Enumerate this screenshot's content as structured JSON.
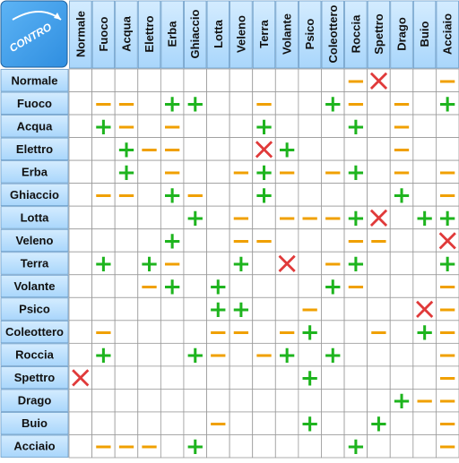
{
  "corner": "CONTRO",
  "symbol_colors": {
    "+": "#1eb41e",
    "−": "#f0a000",
    "×": "#e03a3a"
  },
  "columns": [
    "Normale",
    "Fuoco",
    "Acqua",
    "Elettro",
    "Erba",
    "Ghiaccio",
    "Lotta",
    "Veleno",
    "Terra",
    "Volante",
    "Psico",
    "Coleottero",
    "Roccia",
    "Spettro",
    "Drago",
    "Buio",
    "Acciaio"
  ],
  "rows": [
    {
      "label": "Normale",
      "cells": [
        null,
        null,
        null,
        null,
        null,
        null,
        null,
        null,
        null,
        null,
        null,
        null,
        "−",
        "×",
        null,
        null,
        "−"
      ]
    },
    {
      "label": "Fuoco",
      "cells": [
        null,
        "−",
        "−",
        null,
        "+",
        "+",
        null,
        null,
        "−",
        null,
        null,
        "+",
        "−",
        null,
        "−",
        null,
        "+"
      ]
    },
    {
      "label": "Acqua",
      "cells": [
        null,
        "+",
        "−",
        null,
        "−",
        null,
        null,
        null,
        "+",
        null,
        null,
        null,
        "+",
        null,
        "−",
        null,
        null
      ]
    },
    {
      "label": "Elettro",
      "cells": [
        null,
        null,
        "+",
        "−",
        "−",
        null,
        null,
        null,
        "×",
        "+",
        null,
        null,
        null,
        null,
        "−",
        null,
        null
      ]
    },
    {
      "label": "Erba",
      "cells": [
        null,
        null,
        "+",
        null,
        "−",
        null,
        null,
        "−",
        "+",
        "−",
        null,
        "−",
        "+",
        null,
        "−",
        null,
        "−"
      ]
    },
    {
      "label": "Ghiaccio",
      "cells": [
        null,
        "−",
        "−",
        null,
        "+",
        "−",
        null,
        null,
        "+",
        null,
        null,
        null,
        null,
        null,
        "+",
        null,
        "−"
      ]
    },
    {
      "label": "Lotta",
      "cells": [
        null,
        null,
        null,
        null,
        null,
        "+",
        null,
        "−",
        null,
        "−",
        "−",
        "−",
        "+",
        "×",
        null,
        "+",
        "+"
      ]
    },
    {
      "label": "Veleno",
      "cells": [
        null,
        null,
        null,
        null,
        "+",
        null,
        null,
        "−",
        "−",
        null,
        null,
        null,
        "−",
        "−",
        null,
        null,
        "×"
      ]
    },
    {
      "label": "Terra",
      "cells": [
        null,
        "+",
        null,
        "+",
        "−",
        null,
        null,
        "+",
        null,
        "×",
        null,
        "−",
        "+",
        null,
        null,
        null,
        "+"
      ]
    },
    {
      "label": "Volante",
      "cells": [
        null,
        null,
        null,
        "−",
        "+",
        null,
        "+",
        null,
        null,
        null,
        null,
        "+",
        "−",
        null,
        null,
        null,
        "−"
      ]
    },
    {
      "label": "Psico",
      "cells": [
        null,
        null,
        null,
        null,
        null,
        null,
        "+",
        "+",
        null,
        null,
        "−",
        null,
        null,
        null,
        null,
        "×",
        "−"
      ]
    },
    {
      "label": "Coleottero",
      "cells": [
        null,
        "−",
        null,
        null,
        null,
        null,
        "−",
        "−",
        null,
        "−",
        "+",
        null,
        null,
        "−",
        null,
        "+",
        "−"
      ]
    },
    {
      "label": "Roccia",
      "cells": [
        null,
        "+",
        null,
        null,
        null,
        "+",
        "−",
        null,
        "−",
        "+",
        null,
        "+",
        null,
        null,
        null,
        null,
        "−"
      ]
    },
    {
      "label": "Spettro",
      "cells": [
        "×",
        null,
        null,
        null,
        null,
        null,
        null,
        null,
        null,
        null,
        "+",
        null,
        null,
        null,
        null,
        null,
        "−"
      ]
    },
    {
      "label": "Drago",
      "cells": [
        null,
        null,
        null,
        null,
        null,
        null,
        null,
        null,
        null,
        null,
        null,
        null,
        null,
        null,
        "+",
        "−",
        "−"
      ]
    },
    {
      "label": "Buio",
      "cells": [
        null,
        null,
        null,
        null,
        null,
        null,
        "−",
        null,
        null,
        null,
        "+",
        null,
        null,
        "+",
        null,
        null,
        "−"
      ]
    },
    {
      "label": "Acciaio",
      "cells": [
        null,
        "−",
        "−",
        "−",
        null,
        "+",
        null,
        null,
        null,
        null,
        null,
        null,
        "+",
        null,
        null,
        null,
        "−"
      ]
    }
  ]
}
